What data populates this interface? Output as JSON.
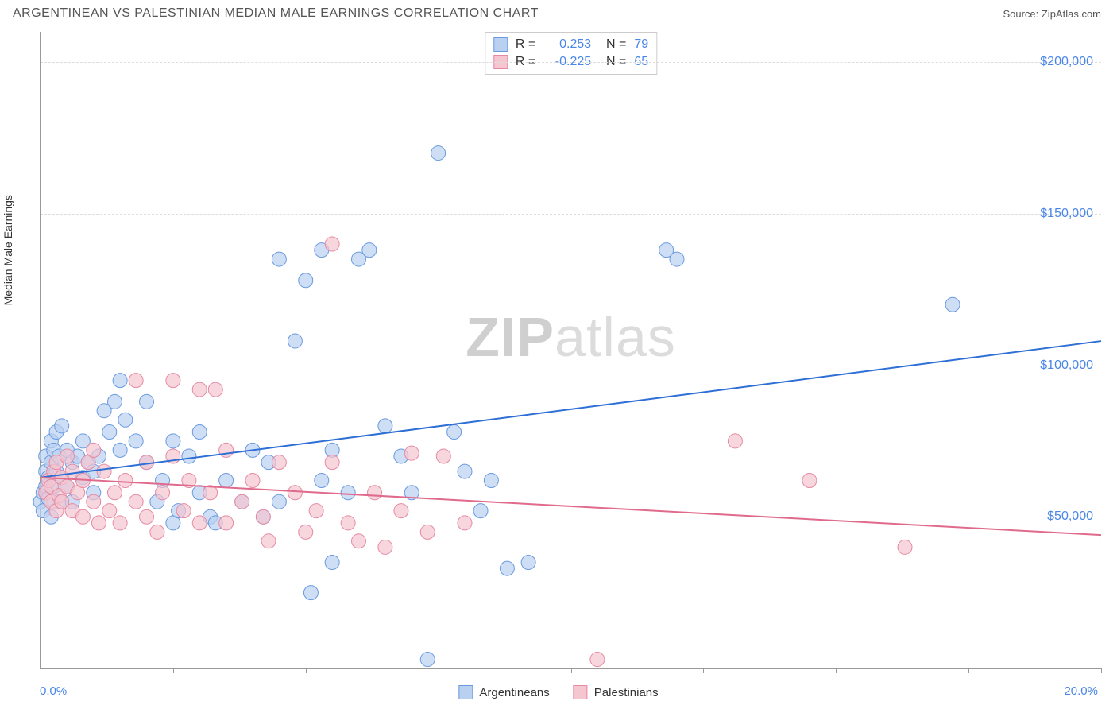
{
  "header": {
    "title": "ARGENTINEAN VS PALESTINIAN MEDIAN MALE EARNINGS CORRELATION CHART",
    "source": "Source: ZipAtlas.com"
  },
  "watermark": {
    "zip": "ZIP",
    "atlas": "atlas"
  },
  "axes": {
    "y_title": "Median Male Earnings",
    "x_min_label": "0.0%",
    "x_max_label": "20.0%",
    "x_min": 0,
    "x_max": 20,
    "y_min": 0,
    "y_max": 210000,
    "x_ticks": [
      0,
      2.5,
      5,
      7.5,
      10,
      12.5,
      15,
      17.5,
      20
    ],
    "y_gridlines": [
      {
        "value": 50000,
        "label": "$50,000"
      },
      {
        "value": 100000,
        "label": "$100,000"
      },
      {
        "value": 150000,
        "label": "$150,000"
      },
      {
        "value": 200000,
        "label": "$200,000"
      }
    ]
  },
  "series": [
    {
      "name": "Argentineans",
      "fill": "#b9d0f0",
      "stroke": "#6a9ae0",
      "line_stroke": "#2e6fd6",
      "line_width": 2,
      "marker_radius": 9,
      "marker_opacity": 0.7,
      "r_label": "R =",
      "r_value": "0.253",
      "n_label": "N =",
      "n_value": "79",
      "trend": {
        "x1": 0,
        "y1": 63000,
        "x2": 20,
        "y2": 108000
      },
      "points": [
        [
          0.0,
          55000
        ],
        [
          0.05,
          52000
        ],
        [
          0.05,
          58000
        ],
        [
          0.1,
          60000
        ],
        [
          0.1,
          65000
        ],
        [
          0.1,
          70000
        ],
        [
          0.15,
          56000
        ],
        [
          0.15,
          63000
        ],
        [
          0.2,
          68000
        ],
        [
          0.2,
          50000
        ],
        [
          0.2,
          75000
        ],
        [
          0.25,
          72000
        ],
        [
          0.25,
          60000
        ],
        [
          0.3,
          65000
        ],
        [
          0.3,
          78000
        ],
        [
          0.35,
          70000
        ],
        [
          0.35,
          55000
        ],
        [
          0.4,
          63000
        ],
        [
          0.4,
          80000
        ],
        [
          0.5,
          72000
        ],
        [
          0.5,
          60000
        ],
        [
          0.6,
          68000
        ],
        [
          0.6,
          55000
        ],
        [
          0.7,
          70000
        ],
        [
          0.8,
          63000
        ],
        [
          0.8,
          75000
        ],
        [
          0.9,
          68000
        ],
        [
          1.0,
          65000
        ],
        [
          1.0,
          58000
        ],
        [
          1.1,
          70000
        ],
        [
          1.2,
          85000
        ],
        [
          1.3,
          78000
        ],
        [
          1.4,
          88000
        ],
        [
          1.5,
          72000
        ],
        [
          1.5,
          95000
        ],
        [
          1.6,
          82000
        ],
        [
          1.8,
          75000
        ],
        [
          2.0,
          68000
        ],
        [
          2.0,
          88000
        ],
        [
          2.2,
          55000
        ],
        [
          2.3,
          62000
        ],
        [
          2.5,
          48000
        ],
        [
          2.5,
          75000
        ],
        [
          2.6,
          52000
        ],
        [
          2.8,
          70000
        ],
        [
          3.0,
          58000
        ],
        [
          3.0,
          78000
        ],
        [
          3.2,
          50000
        ],
        [
          3.3,
          48000
        ],
        [
          3.5,
          62000
        ],
        [
          3.8,
          55000
        ],
        [
          4.0,
          72000
        ],
        [
          4.2,
          50000
        ],
        [
          4.3,
          68000
        ],
        [
          4.5,
          135000
        ],
        [
          4.5,
          55000
        ],
        [
          4.8,
          108000
        ],
        [
          5.0,
          128000
        ],
        [
          5.1,
          25000
        ],
        [
          5.3,
          138000
        ],
        [
          5.3,
          62000
        ],
        [
          5.5,
          35000
        ],
        [
          5.5,
          72000
        ],
        [
          5.8,
          58000
        ],
        [
          6.0,
          135000
        ],
        [
          6.2,
          138000
        ],
        [
          6.5,
          80000
        ],
        [
          6.8,
          70000
        ],
        [
          7.0,
          58000
        ],
        [
          7.3,
          3000
        ],
        [
          7.5,
          170000
        ],
        [
          7.8,
          78000
        ],
        [
          8.3,
          52000
        ],
        [
          8.5,
          62000
        ],
        [
          8.8,
          33000
        ],
        [
          9.2,
          35000
        ],
        [
          11.8,
          138000
        ],
        [
          12.0,
          135000
        ],
        [
          17.2,
          120000
        ],
        [
          8.0,
          65000
        ]
      ]
    },
    {
      "name": "Palestinians",
      "fill": "#f5c5d0",
      "stroke": "#e68aa3",
      "line_stroke": "#e06a8c",
      "line_width": 2,
      "marker_radius": 9,
      "marker_opacity": 0.7,
      "r_label": "R =",
      "r_value": "-0.225",
      "n_label": "N =",
      "n_value": "65",
      "trend": {
        "x1": 0,
        "y1": 63000,
        "x2": 20,
        "y2": 44000
      },
      "points": [
        [
          0.1,
          58000
        ],
        [
          0.15,
          62000
        ],
        [
          0.2,
          55000
        ],
        [
          0.2,
          60000
        ],
        [
          0.25,
          65000
        ],
        [
          0.3,
          52000
        ],
        [
          0.3,
          68000
        ],
        [
          0.35,
          57000
        ],
        [
          0.4,
          63000
        ],
        [
          0.4,
          55000
        ],
        [
          0.5,
          60000
        ],
        [
          0.5,
          70000
        ],
        [
          0.6,
          52000
        ],
        [
          0.6,
          65000
        ],
        [
          0.7,
          58000
        ],
        [
          0.8,
          62000
        ],
        [
          0.8,
          50000
        ],
        [
          0.9,
          68000
        ],
        [
          1.0,
          55000
        ],
        [
          1.0,
          72000
        ],
        [
          1.1,
          48000
        ],
        [
          1.2,
          65000
        ],
        [
          1.3,
          52000
        ],
        [
          1.4,
          58000
        ],
        [
          1.5,
          48000
        ],
        [
          1.6,
          62000
        ],
        [
          1.8,
          55000
        ],
        [
          1.8,
          95000
        ],
        [
          2.0,
          50000
        ],
        [
          2.0,
          68000
        ],
        [
          2.2,
          45000
        ],
        [
          2.3,
          58000
        ],
        [
          2.5,
          70000
        ],
        [
          2.5,
          95000
        ],
        [
          2.7,
          52000
        ],
        [
          2.8,
          62000
        ],
        [
          3.0,
          48000
        ],
        [
          3.0,
          92000
        ],
        [
          3.2,
          58000
        ],
        [
          3.3,
          92000
        ],
        [
          3.5,
          72000
        ],
        [
          3.5,
          48000
        ],
        [
          3.8,
          55000
        ],
        [
          4.0,
          62000
        ],
        [
          4.2,
          50000
        ],
        [
          4.5,
          68000
        ],
        [
          4.8,
          58000
        ],
        [
          5.0,
          45000
        ],
        [
          5.2,
          52000
        ],
        [
          5.5,
          68000
        ],
        [
          5.5,
          140000
        ],
        [
          5.8,
          48000
        ],
        [
          6.0,
          42000
        ],
        [
          6.3,
          58000
        ],
        [
          6.5,
          40000
        ],
        [
          6.8,
          52000
        ],
        [
          7.0,
          71000
        ],
        [
          7.3,
          45000
        ],
        [
          7.6,
          70000
        ],
        [
          8.0,
          48000
        ],
        [
          10.5,
          3000
        ],
        [
          13.1,
          75000
        ],
        [
          14.5,
          62000
        ],
        [
          16.3,
          40000
        ],
        [
          4.3,
          42000
        ]
      ]
    }
  ],
  "bottom_legend": [
    {
      "label": "Argentineans",
      "fill": "#b9d0f0",
      "stroke": "#6a9ae0"
    },
    {
      "label": "Palestinians",
      "fill": "#f5c5d0",
      "stroke": "#e68aa3"
    }
  ]
}
